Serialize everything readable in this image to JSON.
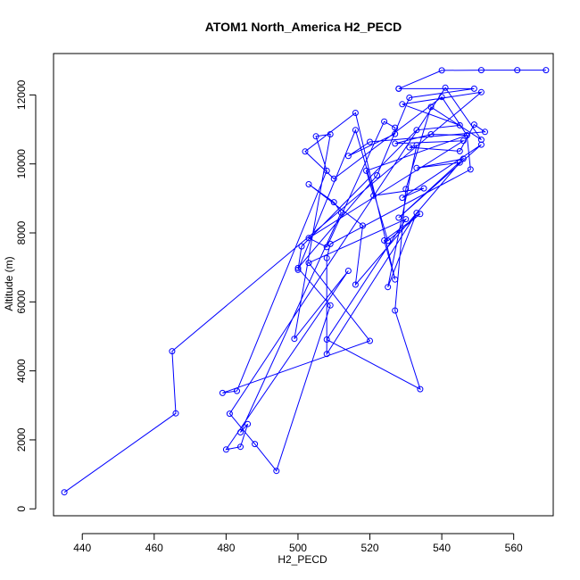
{
  "chart_data": {
    "type": "line",
    "title": "ATOM1 North_America H2_PECD",
    "xlabel": "H2_PECD",
    "ylabel": "Altitude (m)",
    "xlim": [
      432,
      571
    ],
    "ylim": [
      -200,
      13200
    ],
    "xticks": [
      440,
      460,
      480,
      500,
      520,
      540,
      560
    ],
    "yticks": [
      0,
      2000,
      4000,
      6000,
      8000,
      10000,
      12000
    ],
    "grid": false,
    "legend": "none",
    "markers": "open-circle",
    "color": "#0000ff",
    "x": [
      435,
      466,
      465,
      551,
      529,
      545,
      533,
      501,
      500,
      516,
      525,
      534,
      524,
      527,
      516,
      502,
      510,
      540,
      547,
      548,
      509,
      508,
      508,
      533,
      525,
      533,
      531,
      545,
      549,
      552,
      520,
      514,
      527,
      527,
      524,
      508,
      503,
      546,
      527,
      537,
      547,
      519,
      521,
      535,
      529,
      551,
      528,
      546,
      533,
      545,
      516,
      518,
      503,
      510,
      512,
      484,
      486,
      484,
      480,
      514,
      499,
      509,
      505,
      508,
      483,
      479,
      520,
      503,
      530,
      508,
      534,
      527,
      530,
      537,
      551,
      541,
      481,
      488,
      494,
      509,
      500,
      522,
      531,
      549,
      528,
      528,
      540,
      551,
      561,
      569
    ],
    "y": [
      480,
      2770,
      4570,
      12080,
      11730,
      11120,
      10980,
      7610,
      6930,
      10980,
      7770,
      8550,
      7780,
      6650,
      11480,
      10360,
      9570,
      11940,
      10830,
      9840,
      7680,
      7270,
      4490,
      8580,
      6430,
      10540,
      10480,
      10370,
      11140,
      10930,
      10640,
      10230,
      10870,
      11050,
      11230,
      7590,
      7850,
      10670,
      10590,
      10860,
      10830,
      9800,
      9080,
      9290,
      9020,
      10560,
      8440,
      10150,
      9880,
      10040,
      6500,
      8210,
      9410,
      8890,
      8590,
      2220,
      2460,
      1800,
      1720,
      6900,
      4930,
      10860,
      10800,
      9800,
      3420,
      3360,
      4870,
      7130,
      8400,
      4910,
      3470,
      5750,
      9270,
      11650,
      10700,
      12210,
      2760,
      1880,
      1100,
      5900,
      6980,
      9670,
      11920,
      12180,
      12180,
      12180,
      12710,
      12720,
      12720,
      12720
    ]
  }
}
